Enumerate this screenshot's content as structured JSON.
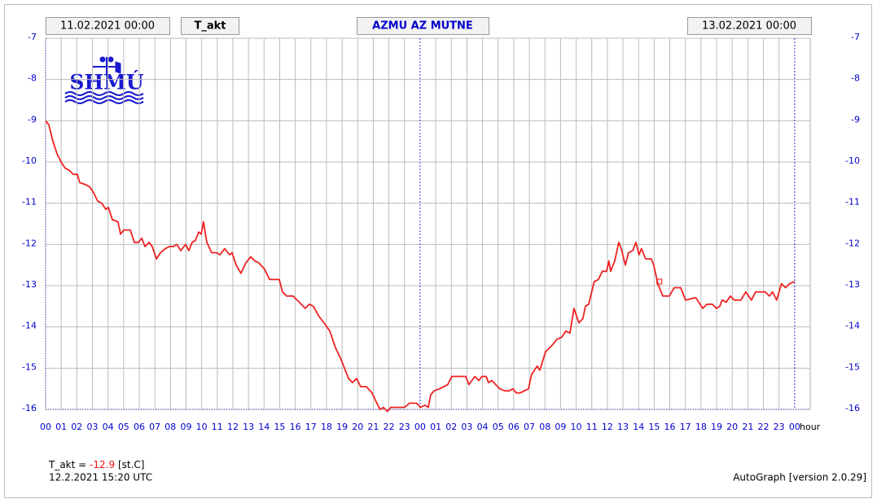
{
  "chart_data": {
    "type": "line",
    "title": "AZMU AZ MUTNE",
    "start_label": "11.02.2021 00:00",
    "end_label": "13.02.2021 00:00",
    "x_label": "hour",
    "logo": "SHMÚ",
    "footer": "AutoGraph [version 2.0.29]",
    "current": {
      "label": "T_akt =",
      "value": -12.9,
      "unit": "[st.C]",
      "time": "12.2.2021 15:20 UTC",
      "x": 39.33,
      "color": "#ee1111"
    },
    "grid": true,
    "xlim": [
      0,
      49
    ],
    "ylim": [
      -16,
      -7
    ],
    "yticks": [
      -16,
      -15,
      -14,
      -13,
      -12,
      -11,
      -10,
      -9,
      -8,
      -7
    ],
    "xticks": [
      {
        "value": 0,
        "label": "00"
      },
      {
        "value": 1,
        "label": "01"
      },
      {
        "value": 2,
        "label": "02"
      },
      {
        "value": 3,
        "label": "03"
      },
      {
        "value": 4,
        "label": "04"
      },
      {
        "value": 5,
        "label": "05"
      },
      {
        "value": 6,
        "label": "06"
      },
      {
        "value": 7,
        "label": "07"
      },
      {
        "value": 8,
        "label": "08"
      },
      {
        "value": 9,
        "label": "09"
      },
      {
        "value": 10,
        "label": "10"
      },
      {
        "value": 11,
        "label": "11"
      },
      {
        "value": 12,
        "label": "12"
      },
      {
        "value": 13,
        "label": "13"
      },
      {
        "value": 14,
        "label": "14"
      },
      {
        "value": 15,
        "label": "15"
      },
      {
        "value": 16,
        "label": "16"
      },
      {
        "value": 17,
        "label": "17"
      },
      {
        "value": 18,
        "label": "18"
      },
      {
        "value": 19,
        "label": "19"
      },
      {
        "value": 20,
        "label": "20"
      },
      {
        "value": 21,
        "label": "21"
      },
      {
        "value": 22,
        "label": "22"
      },
      {
        "value": 23,
        "label": "23"
      },
      {
        "value": 24,
        "label": "00"
      },
      {
        "value": 25,
        "label": "01"
      },
      {
        "value": 26,
        "label": "02"
      },
      {
        "value": 27,
        "label": "03"
      },
      {
        "value": 28,
        "label": "04"
      },
      {
        "value": 29,
        "label": "05"
      },
      {
        "value": 30,
        "label": "06"
      },
      {
        "value": 31,
        "label": "07"
      },
      {
        "value": 32,
        "label": "08"
      },
      {
        "value": 33,
        "label": "09"
      },
      {
        "value": 34,
        "label": "10"
      },
      {
        "value": 35,
        "label": "11"
      },
      {
        "value": 36,
        "label": "12"
      },
      {
        "value": 37,
        "label": "13"
      },
      {
        "value": 38,
        "label": "14"
      },
      {
        "value": 39,
        "label": "15"
      },
      {
        "value": 40,
        "label": "16"
      },
      {
        "value": 41,
        "label": "17"
      },
      {
        "value": 42,
        "label": "18"
      },
      {
        "value": 43,
        "label": "19"
      },
      {
        "value": 44,
        "label": "20"
      },
      {
        "value": 45,
        "label": "21"
      },
      {
        "value": 46,
        "label": "22"
      },
      {
        "value": 47,
        "label": "23"
      },
      {
        "value": 48,
        "label": "00"
      }
    ],
    "day_ticks": [
      24,
      48
    ],
    "x": [
      0,
      0.21,
      0.47,
      0.73,
      0.99,
      1.25,
      1.51,
      1.77,
      2.03,
      2.19,
      2.56,
      2.82,
      3.08,
      3.34,
      3.6,
      3.86,
      4.02,
      4.28,
      4.64,
      4.8,
      5.01,
      5.43,
      5.69,
      5.95,
      6.16,
      6.37,
      6.63,
      6.83,
      7.1,
      7.36,
      7.67,
      7.93,
      8.19,
      8.4,
      8.66,
      8.97,
      9.18,
      9.39,
      9.6,
      9.81,
      9.97,
      10.12,
      10.33,
      10.64,
      10.96,
      11.17,
      11.48,
      11.79,
      11.95,
      12.21,
      12.52,
      12.83,
      13.15,
      13.41,
      13.67,
      14.03,
      14.35,
      14.97,
      15.18,
      15.44,
      15.86,
      16.12,
      16.38,
      16.64,
      16.9,
      17.16,
      17.53,
      17.84,
      18.21,
      18.57,
      18.89,
      19.15,
      19.41,
      19.67,
      19.93,
      20.19,
      20.56,
      20.92,
      21.23,
      21.44,
      21.65,
      21.91,
      22.12,
      22.49,
      23.01,
      23.32,
      23.58,
      23.79,
      24,
      24.31,
      24.52,
      24.68,
      24.89,
      25.25,
      25.51,
      25.77,
      26.03,
      26.4,
      26.92,
      27.13,
      27.5,
      27.76,
      27.96,
      28.23,
      28.38,
      28.59,
      28.85,
      29.11,
      29.43,
      29.69,
      29.95,
      30.16,
      30.42,
      30.68,
      30.94,
      31.15,
      31.51,
      31.67,
      32.04,
      32.45,
      32.76,
      33.08,
      33.34,
      33.6,
      33.86,
      34.17,
      34.43,
      34.59,
      34.8,
      35.16,
      35.42,
      35.68,
      35.95,
      36.1,
      36.21,
      36.47,
      36.73,
      36.89,
      37.15,
      37.36,
      37.62,
      37.83,
      38.03,
      38.19,
      38.45,
      38.82,
      38.97,
      39.23,
      39.55,
      39.97,
      40.28,
      40.7,
      41.01,
      41.53,
      41.69,
      41.85,
      42.11,
      42.37,
      42.73,
      42.99,
      43.2,
      43.36,
      43.62,
      43.88,
      44.14,
      44.56,
      44.87,
      45.23,
      45.5,
      46.12,
      46.38,
      46.59,
      46.85,
      47.16,
      47.42,
      47.68,
      48
    ],
    "series": [
      {
        "name": "T_akt",
        "color": "#ee2222",
        "values": [
          -9,
          -9.1,
          -9.5,
          -9.8,
          -10,
          -10.15,
          -10.2,
          -10.3,
          -10.3,
          -10.5,
          -10.55,
          -10.6,
          -10.75,
          -10.95,
          -11,
          -11.15,
          -11.1,
          -11.4,
          -11.45,
          -11.75,
          -11.65,
          -11.65,
          -11.95,
          -11.95,
          -11.85,
          -12.05,
          -11.95,
          -12.05,
          -12.35,
          -12.2,
          -12.1,
          -12.05,
          -12.05,
          -12,
          -12.15,
          -12,
          -12.15,
          -11.95,
          -11.9,
          -11.7,
          -11.75,
          -11.45,
          -11.95,
          -12.2,
          -12.2,
          -12.25,
          -12.1,
          -12.25,
          -12.2,
          -12.5,
          -12.7,
          -12.45,
          -12.3,
          -12.4,
          -12.45,
          -12.6,
          -12.85,
          -12.85,
          -13.15,
          -13.25,
          -13.25,
          -13.35,
          -13.45,
          -13.55,
          -13.45,
          -13.5,
          -13.75,
          -13.9,
          -14.1,
          -14.5,
          -14.75,
          -15,
          -15.25,
          -15.35,
          -15.25,
          -15.45,
          -15.45,
          -15.6,
          -15.85,
          -16,
          -15.95,
          -16.05,
          -15.95,
          -15.95,
          -15.95,
          -15.85,
          -15.85,
          -15.85,
          -15.95,
          -15.9,
          -15.95,
          -15.65,
          -15.55,
          -15.5,
          -15.45,
          -15.4,
          -15.2,
          -15.2,
          -15.2,
          -15.4,
          -15.2,
          -15.3,
          -15.2,
          -15.2,
          -15.35,
          -15.3,
          -15.4,
          -15.5,
          -15.55,
          -15.55,
          -15.5,
          -15.6,
          -15.6,
          -15.55,
          -15.5,
          -15.15,
          -14.95,
          -15.05,
          -14.6,
          -14.45,
          -14.3,
          -14.25,
          -14.1,
          -14.15,
          -13.55,
          -13.9,
          -13.8,
          -13.5,
          -13.45,
          -12.9,
          -12.85,
          -12.65,
          -12.65,
          -12.4,
          -12.65,
          -12.4,
          -11.95,
          -12.1,
          -12.5,
          -12.2,
          -12.15,
          -11.95,
          -12.25,
          -12.1,
          -12.35,
          -12.35,
          -12.5,
          -12.95,
          -13.25,
          -13.25,
          -13.05,
          -13.05,
          -13.35,
          -13.3,
          -13.3,
          -13.4,
          -13.55,
          -13.45,
          -13.45,
          -13.55,
          -13.5,
          -13.35,
          -13.4,
          -13.25,
          -13.35,
          -13.35,
          -13.15,
          -13.35,
          -13.15,
          -13.15,
          -13.25,
          -13.15,
          -13.35,
          -12.95,
          -13.05,
          -12.95,
          -12.9
        ]
      }
    ]
  }
}
